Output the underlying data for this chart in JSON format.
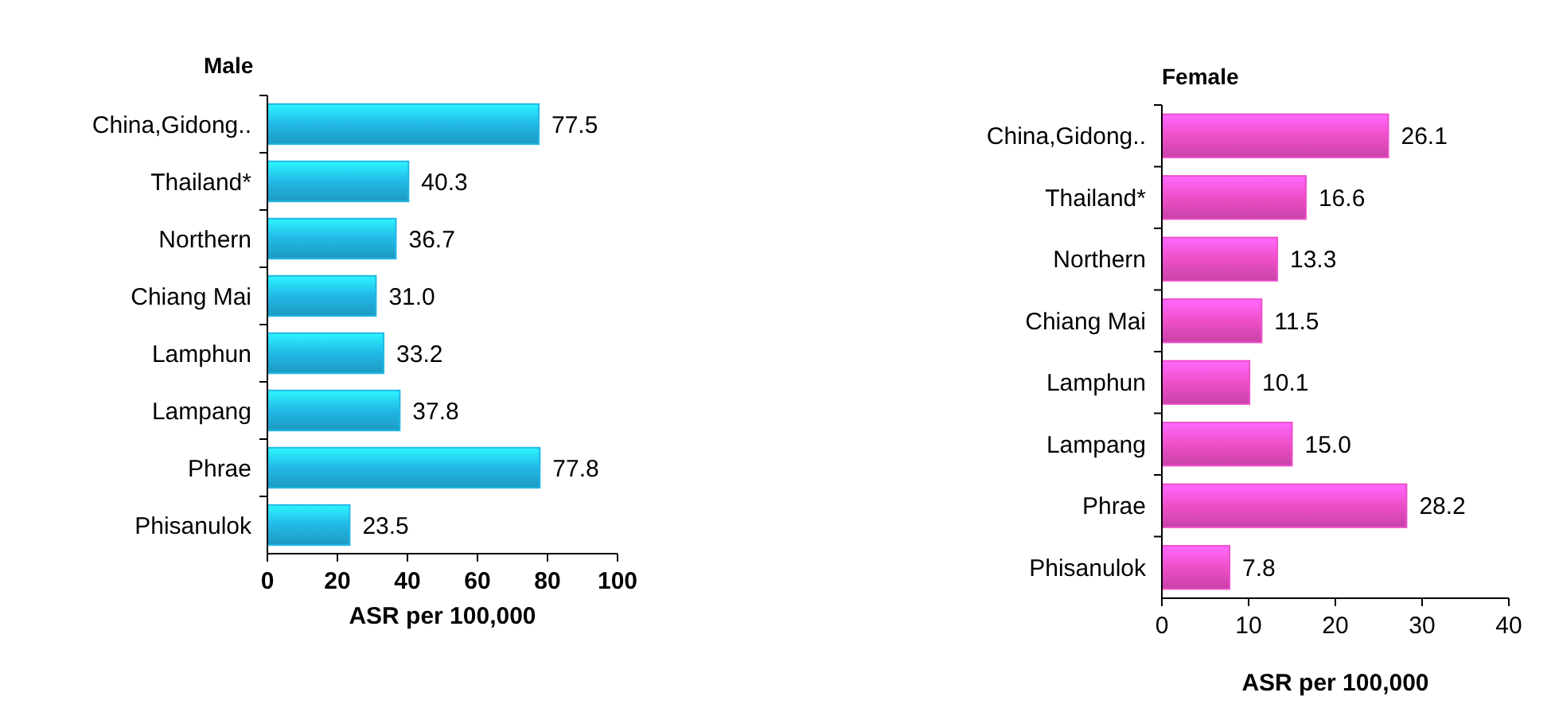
{
  "chart_data": [
    {
      "type": "bar",
      "orientation": "horizontal",
      "title": "Male",
      "xlabel": "ASR per 100,000",
      "categories": [
        "China,Gidong..",
        "Thailand*",
        "Northern",
        "Chiang Mai",
        "Lamphun",
        "Lampang",
        "Phrae",
        "Phisanulok"
      ],
      "values": [
        77.5,
        40.3,
        36.7,
        31.0,
        33.2,
        37.8,
        77.8,
        23.5
      ],
      "value_labels": [
        "77.5",
        "40.3",
        "36.7",
        "31.0",
        "33.2",
        "37.8",
        "77.8",
        "23.5"
      ],
      "color": "#22b8e6",
      "xlim": [
        0,
        100
      ],
      "xticks": [
        0,
        20,
        40,
        60,
        80,
        100
      ]
    },
    {
      "type": "bar",
      "orientation": "horizontal",
      "title": "Female",
      "xlabel": "ASR per 100,000",
      "categories": [
        "China,Gidong..",
        "Thailand*",
        "Northern",
        "Chiang Mai",
        "Lamphun",
        "Lampang",
        "Phrae",
        "Phisanulok"
      ],
      "values": [
        26.1,
        16.6,
        13.3,
        11.5,
        10.1,
        15.0,
        28.2,
        7.8
      ],
      "value_labels": [
        "26.1",
        "16.6",
        "13.3",
        "11.5",
        "10.1",
        "15.0",
        "28.2",
        "7.8"
      ],
      "color": "#ee4fc8",
      "xlim": [
        0,
        40
      ],
      "xticks": [
        0,
        10,
        20,
        30,
        40
      ]
    }
  ]
}
